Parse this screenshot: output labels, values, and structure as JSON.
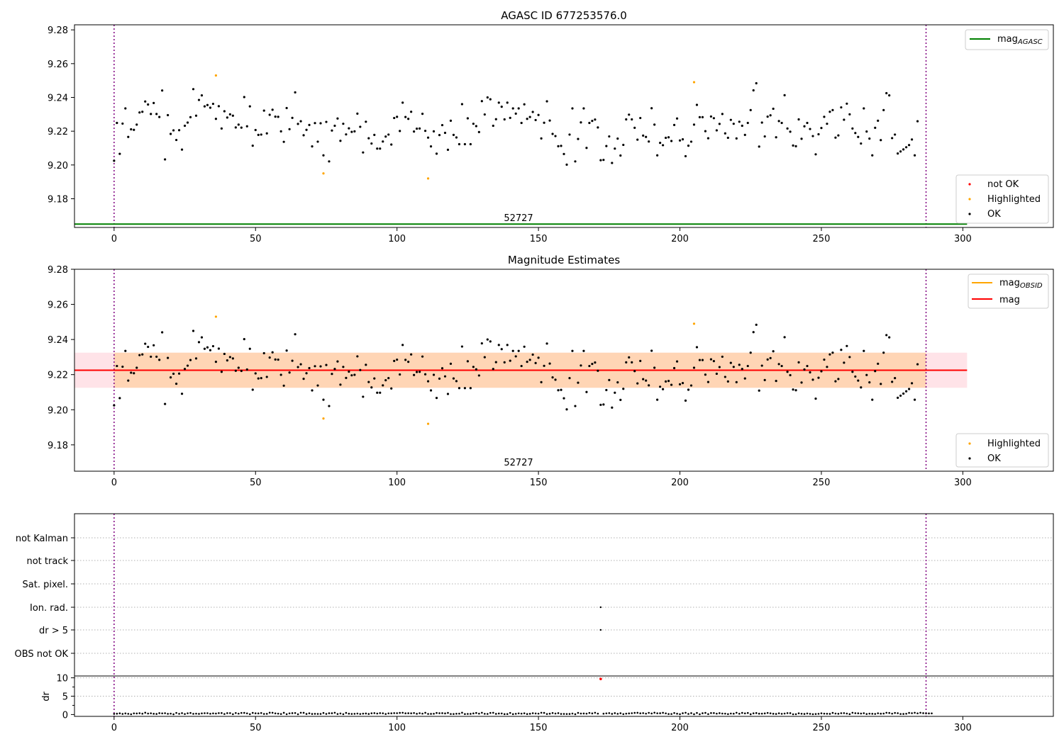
{
  "chart_data": [
    {
      "type": "scatter",
      "title": "AGASC ID 677253576.0",
      "obsid_label": "52727",
      "xlim": [
        -14,
        332
      ],
      "ylim": [
        9.163,
        9.283
      ],
      "xticks": [
        0,
        50,
        100,
        150,
        200,
        250,
        300
      ],
      "xtick_labels": [
        "0",
        "50",
        "100",
        "150",
        "200",
        "250",
        "300"
      ],
      "yticks": [
        9.18,
        9.2,
        9.22,
        9.24,
        9.26,
        9.28
      ],
      "ytick_labels": [
        "9.18",
        "9.20",
        "9.22",
        "9.24",
        "9.26",
        "9.28"
      ],
      "vlines": [
        0,
        287
      ],
      "hline": {
        "name": "mag",
        "sub": "AGASC",
        "y": 9.165,
        "color": "#008000"
      },
      "legend_lines": [
        {
          "name": "mag",
          "sub": "AGASC",
          "color": "#008000"
        }
      ],
      "legend_points": [
        {
          "name": "not OK",
          "color": "#ff0000"
        },
        {
          "name": "Highlighted",
          "color": "#ffa500"
        },
        {
          "name": "OK",
          "color": "#000000"
        }
      ],
      "highlighted_points": [
        [
          36,
          9.253
        ],
        [
          74,
          9.195
        ],
        [
          111,
          9.192
        ],
        [
          205,
          9.249
        ]
      ]
    },
    {
      "type": "scatter",
      "title": "Magnitude Estimates",
      "obsid_label": "52727",
      "xlim": [
        -14,
        332
      ],
      "ylim": [
        9.165,
        9.28
      ],
      "xticks": [
        0,
        50,
        100,
        150,
        200,
        250,
        300
      ],
      "xtick_labels": [
        "0",
        "50",
        "100",
        "150",
        "200",
        "250",
        "300"
      ],
      "yticks": [
        9.18,
        9.2,
        9.22,
        9.24,
        9.26,
        9.28
      ],
      "ytick_labels": [
        "9.18",
        "9.20",
        "9.22",
        "9.24",
        "9.26",
        "9.28"
      ],
      "vlines": [
        0,
        287
      ],
      "mag": 9.2225,
      "mag_band": [
        9.2125,
        9.2325
      ],
      "mag_obsid": 9.2225,
      "legend_lines": [
        {
          "name": "mag",
          "sub": "OBSID",
          "color": "#ffa500"
        },
        {
          "name": "mag",
          "sub": "",
          "color": "#ff0000"
        }
      ],
      "legend_points": [
        {
          "name": "Highlighted",
          "color": "#ffa500"
        },
        {
          "name": "OK",
          "color": "#000000"
        }
      ],
      "highlighted_points": [
        [
          36,
          9.253
        ],
        [
          74,
          9.195
        ],
        [
          111,
          9.192
        ],
        [
          205,
          9.249
        ]
      ]
    },
    {
      "type": "scatter",
      "title": "",
      "xlim": [
        -14,
        332
      ],
      "xticks": [
        0,
        50,
        100,
        150,
        200,
        250,
        300
      ],
      "xtick_labels": [
        "0",
        "50",
        "100",
        "150",
        "200",
        "250",
        "300"
      ],
      "vlines": [
        0,
        287
      ],
      "flag_labels": [
        "not Kalman",
        "not track",
        "Sat. pixel.",
        "Ion. rad.",
        "dr > 5",
        "OBS not OK"
      ],
      "flag_points": [
        {
          "flag": "Ion. rad.",
          "x": 172
        },
        {
          "flag": "dr > 5",
          "x": 172
        }
      ],
      "dr_ylabel": "dr",
      "dr_ylim": [
        -0.5,
        10.5
      ],
      "dr_yticks": [
        0,
        5,
        10
      ],
      "dr_ytick_labels": [
        "0",
        "5",
        "10"
      ],
      "dr_outlier": {
        "x": 172,
        "y": 9.7
      }
    }
  ],
  "mag_series": [
    9.2025,
    9.2249,
    9.2066,
    9.2245,
    9.2335,
    9.2166,
    9.2211,
    9.2208,
    9.2239,
    9.2311,
    9.2315,
    9.2376,
    9.2358,
    9.2302,
    9.2367,
    9.2302,
    9.2284,
    9.2441,
    9.2033,
    9.2295,
    9.2184,
    9.2205,
    9.2148,
    9.2206,
    9.2091,
    9.2232,
    9.2251,
    9.2283,
    9.2449,
    9.2292,
    9.2385,
    9.2412,
    9.2347,
    9.2355,
    9.2339,
    9.2362,
    9.2273,
    9.2348,
    9.2216,
    9.2318,
    9.2281,
    9.23,
    9.2292,
    9.2222,
    9.2239,
    9.2221,
    9.2402,
    9.2229,
    9.2347,
    9.2114,
    9.2207,
    9.2178,
    9.218,
    9.2322,
    9.2187,
    9.2297,
    9.2327,
    9.2286,
    9.2285,
    9.2199,
    9.2137,
    9.2337,
    9.2212,
    9.2279,
    9.243,
    9.2243,
    9.2259,
    9.2176,
    9.2208,
    9.2237,
    9.211,
    9.2248,
    9.2138,
    9.2247,
    9.2057,
    9.2255,
    9.2021,
    9.2204,
    9.2232,
    9.2275,
    9.2143,
    9.2244,
    9.2181,
    9.2217,
    9.2196,
    9.2199,
    9.2304,
    9.2226,
    9.2074,
    9.2256,
    9.2158,
    9.2127,
    9.2178,
    9.2097,
    9.2097,
    9.2139,
    9.2168,
    9.218,
    9.2121,
    9.2278,
    9.2285,
    9.2201,
    9.2369,
    9.2284,
    9.2273,
    9.2315,
    9.2198,
    9.2215,
    9.2216,
    9.2303,
    9.2202,
    9.2162,
    9.211,
    9.2199,
    9.2067,
    9.2177,
    9.2236,
    9.219,
    9.209,
    9.2262,
    9.2178,
    9.2163,
    9.2123,
    9.236,
    9.2123,
    9.2276,
    9.2123,
    9.2244,
    9.223,
    9.2195,
    9.2378,
    9.2299,
    9.24,
    9.2389,
    9.2232,
    9.2271,
    9.2369,
    9.2345,
    9.227,
    9.2369,
    9.2279,
    9.2335,
    9.2304,
    9.2335,
    9.2249,
    9.2359,
    9.2273,
    9.2284,
    9.2314,
    9.2266,
    9.2296,
    9.2157,
    9.225,
    9.2377,
    9.2263,
    9.2184,
    9.2171,
    9.2111,
    9.2113,
    9.2065,
    9.2002,
    9.218,
    9.2335,
    9.2021,
    9.2154,
    9.2252,
    9.2335,
    9.2101,
    9.2249,
    9.2261,
    9.2269,
    9.2222,
    9.2028,
    9.203,
    9.2112,
    9.2169,
    9.2012,
    9.2097,
    9.2156,
    9.2056,
    9.2119,
    9.227,
    9.2298,
    9.227,
    9.222,
    9.215,
    9.2278,
    9.2174,
    9.2166,
    9.2139,
    9.2336,
    9.2239,
    9.2057,
    9.2131,
    9.2117,
    9.2161,
    9.2164,
    9.2142,
    9.2237,
    9.2275,
    9.2145,
    9.2152,
    9.2052,
    9.2114,
    9.2138,
    9.2239,
    9.2356,
    9.2283,
    9.2283,
    9.22,
    9.2158,
    9.2287,
    9.2277,
    9.2205,
    9.2243,
    9.2302,
    9.2187,
    9.2161,
    9.2267,
    9.2244,
    9.2157,
    9.2256,
    9.2232,
    9.2178,
    9.2249,
    9.2325,
    9.2442,
    9.2484,
    9.2109,
    9.2251,
    9.2169,
    9.2286,
    9.2294,
    9.2333,
    9.2164,
    9.226,
    9.2249,
    9.2413,
    9.2216,
    9.2197,
    9.2115,
    9.2111,
    9.227,
    9.2155,
    9.2229,
    9.2249,
    9.2213,
    9.2171,
    9.2063,
    9.2182,
    9.2219,
    9.2285,
    9.2244,
    9.2315,
    9.2325,
    9.2162,
    9.2175,
    9.2341,
    9.2268,
    9.2363,
    9.23,
    9.2216,
    9.2189,
    9.2166,
    9.2127,
    9.2335,
    9.2198,
    9.2156,
    9.2057,
    9.222,
    9.2262,
    9.2147,
    9.2325,
    9.2425,
    9.2412,
    9.2159,
    9.218,
    9.2068,
    9.208,
    9.2092,
    9.2105,
    9.2118,
    9.2151,
    9.2057,
    9.2259
  ],
  "dr_series": [
    0.18,
    0.23,
    0.33,
    0.17,
    0.3,
    0.19,
    0.08,
    0.31,
    0.29,
    0.36,
    0.23,
    0.5,
    0.27,
    0.34,
    0.21,
    0.16,
    0.38,
    0.32,
    0.37,
    0.19,
    0.25,
    0.07,
    0.44,
    0.2,
    0.38,
    0.14,
    0.34,
    0.42,
    0.19,
    0.25,
    0.18,
    0.31,
    0.37,
    0.37,
    0.22,
    0.31,
    0.27,
    0.39,
    0.4,
    0.15,
    0.38,
    0.39,
    0.1,
    0.41,
    0.25,
    0.43,
    0.45,
    0.32,
    0.1,
    0.45,
    0.33,
    0.3,
    0.41,
    0.17,
    0.19,
    0.5,
    0.48,
    0.31,
    0.24,
    0.14,
    0.47,
    0.1,
    0.32,
    0.38,
    0.41,
    0.08,
    0.49,
    0.47,
    0.16,
    0.34,
    0.16,
    0.19,
    0.17,
    0.17,
    0.42,
    0.17,
    0.35,
    0.35,
    0.49,
    0.14,
    0.29,
    0.1,
    0.45,
    0.23,
    0.17,
    0.2,
    0.27,
    0.15,
    0.24,
    0.28,
    0.16,
    0.34,
    0.39,
    0.27,
    0.39,
    0.34,
    0.14,
    0.32,
    0.33,
    0.39,
    0.37,
    0.45,
    0.49,
    0.33,
    0.35,
    0.33,
    0.41,
    0.21,
    0.37,
    0.25,
    0.47,
    0.17,
    0.18,
    0.22,
    0.42,
    0.36,
    0.38,
    0.3,
    0.45,
    0.15,
    0.14,
    0.22,
    0.24,
    0.5,
    0.13,
    0.17,
    0.18,
    0.3,
    0.42,
    0.25,
    0.49,
    0.2,
    0.17,
    0.43,
    0.48,
    0.18,
    0.28,
    0.29,
    0.11,
    0.13,
    0.43,
    0.11,
    0.2,
    0.32,
    0.25,
    0.34,
    0.13,
    0.21,
    0.36,
    0.29,
    0.25,
    0.49,
    0.45,
    0.14,
    0.23,
    0.41,
    0.27,
    0.38,
    0.17,
    0.17,
    0.15,
    0.16,
    0.27,
    0.09,
    0.45,
    0.27,
    0.28,
    0.24,
    0.43,
    0.3,
    0.49,
    0.25,
    0.25,
    0.23,
    0.32,
    0.39,
    0.18,
    0.38,
    0.2,
    0.35,
    0.12,
    0.24,
    0.3,
    0.37,
    0.45,
    0.47,
    0.33,
    0.39,
    0.25,
    0.46,
    0.29,
    0.5,
    0.34,
    0.35,
    0.47,
    0.32,
    0.14,
    0.15,
    0.41,
    0.23,
    0.1,
    0.35,
    0.48,
    0.17,
    0.38,
    0.09,
    0.42,
    0.08,
    0.35,
    0.45,
    0.12,
    0.4,
    0.4,
    0.25,
    0.38,
    0.27,
    0.25,
    0.12,
    0.27,
    0.23,
    0.49,
    0.22,
    0.45,
    0.31,
    0.42,
    0.09,
    0.33,
    0.4,
    0.23,
    0.24,
    0.3,
    0.43,
    0.33,
    0.21,
    0.16,
    0.34,
    0.2,
    0.27,
    0.39,
    0.38,
    0.08,
    0.1,
    0.33,
    0.22,
    0.16,
    0.29,
    0.19,
    0.1,
    0.14,
    0.2,
    0.33,
    0.24,
    0.22,
    0.18,
    0.45,
    0.27,
    0.21,
    0.37,
    0.39,
    0.27,
    0.11,
    0.49,
    0.37,
    0.33,
    0.27,
    0.36,
    0.14,
    0.25,
    0.21,
    0.17,
    0.34,
    0.23,
    0.26,
    0.49,
    0.42,
    0.25,
    0.43,
    0.37,
    0.15,
    0.16,
    0.22,
    0.45,
    0.37,
    0.48,
    0.32,
    0.49,
    0.38,
    0.31,
    0.3,
    0.31
  ]
}
